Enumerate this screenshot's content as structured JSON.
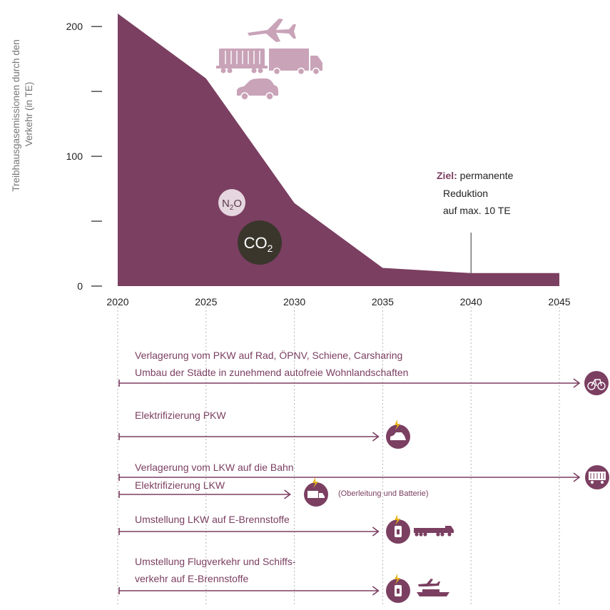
{
  "chart_data": {
    "type": "area",
    "ylabel": "Treibhausgasemissionen durch den Verkehr (in TE)",
    "xlabel": "",
    "x": [
      2020,
      2025,
      2030,
      2035,
      2040,
      2045
    ],
    "x_ticks": [
      "2020",
      "2025",
      "2030",
      "2035",
      "2040",
      "2045"
    ],
    "y_ticks": [
      0,
      50,
      100,
      150,
      200
    ],
    "y_tick_labels": [
      "0",
      "",
      "100",
      "",
      "200"
    ],
    "ylim": [
      0,
      210
    ],
    "xlim": [
      2020,
      2045
    ],
    "series": [
      {
        "name": "",
        "color": "#7b3f61",
        "values": [
          210,
          160,
          64,
          14,
          10,
          10
        ]
      }
    ],
    "annotation": {
      "x": 2040,
      "bold": "Ziel:",
      "line1": "permanente",
      "line2": "Reduktion",
      "line3": "auf max. 10 TE"
    },
    "badges": {
      "n2o_main": "N",
      "n2o_sub": "2",
      "n2o_tail": "O",
      "co2_main": "CO",
      "co2_sub": "2"
    }
  },
  "measures": [
    {
      "lines": [
        "Verlagerung vom PKW auf Rad, ÖPNV, Schiene, Carsharing",
        "Umbau der Städte in zunehmend autofreie Wohnlandschaften"
      ],
      "end_year": 2045,
      "overflow": true,
      "icon": "bicycle-icon"
    },
    {
      "lines": [
        "Elektrifizierung PKW"
      ],
      "end_year": 2035,
      "overflow": false,
      "icon": "electric-car-icon"
    },
    {
      "lines": [
        "Verlagerung vom LKW auf die Bahn"
      ],
      "end_year": 2045,
      "overflow": true,
      "icon": "freight-train-icon"
    },
    {
      "lines": [
        "Elektrifizierung LKW"
      ],
      "end_year": 2030,
      "overflow": false,
      "icon": "electric-truck-icon",
      "note": "(Oberleitung und Batterie)"
    },
    {
      "lines": [
        "Umstellung LKW auf E-Brennstoffe"
      ],
      "end_year": 2035,
      "overflow": false,
      "icon": "fuel-truck-icon"
    },
    {
      "lines": [
        "Umstellung Flugverkehr und Schiffs-",
        "verkehr auf E-Brennstoffe"
      ],
      "end_year": 2035,
      "overflow": false,
      "icon": "fuel-plane-ship-icon"
    }
  ],
  "colors": {
    "area": "#7b3f61",
    "arrow": "#7b3f61",
    "text": "#7b3f61",
    "axis": "#333333",
    "icon_light": "#c9a3b8",
    "co2": "#3a362c",
    "n2o": "#e6d6df"
  }
}
